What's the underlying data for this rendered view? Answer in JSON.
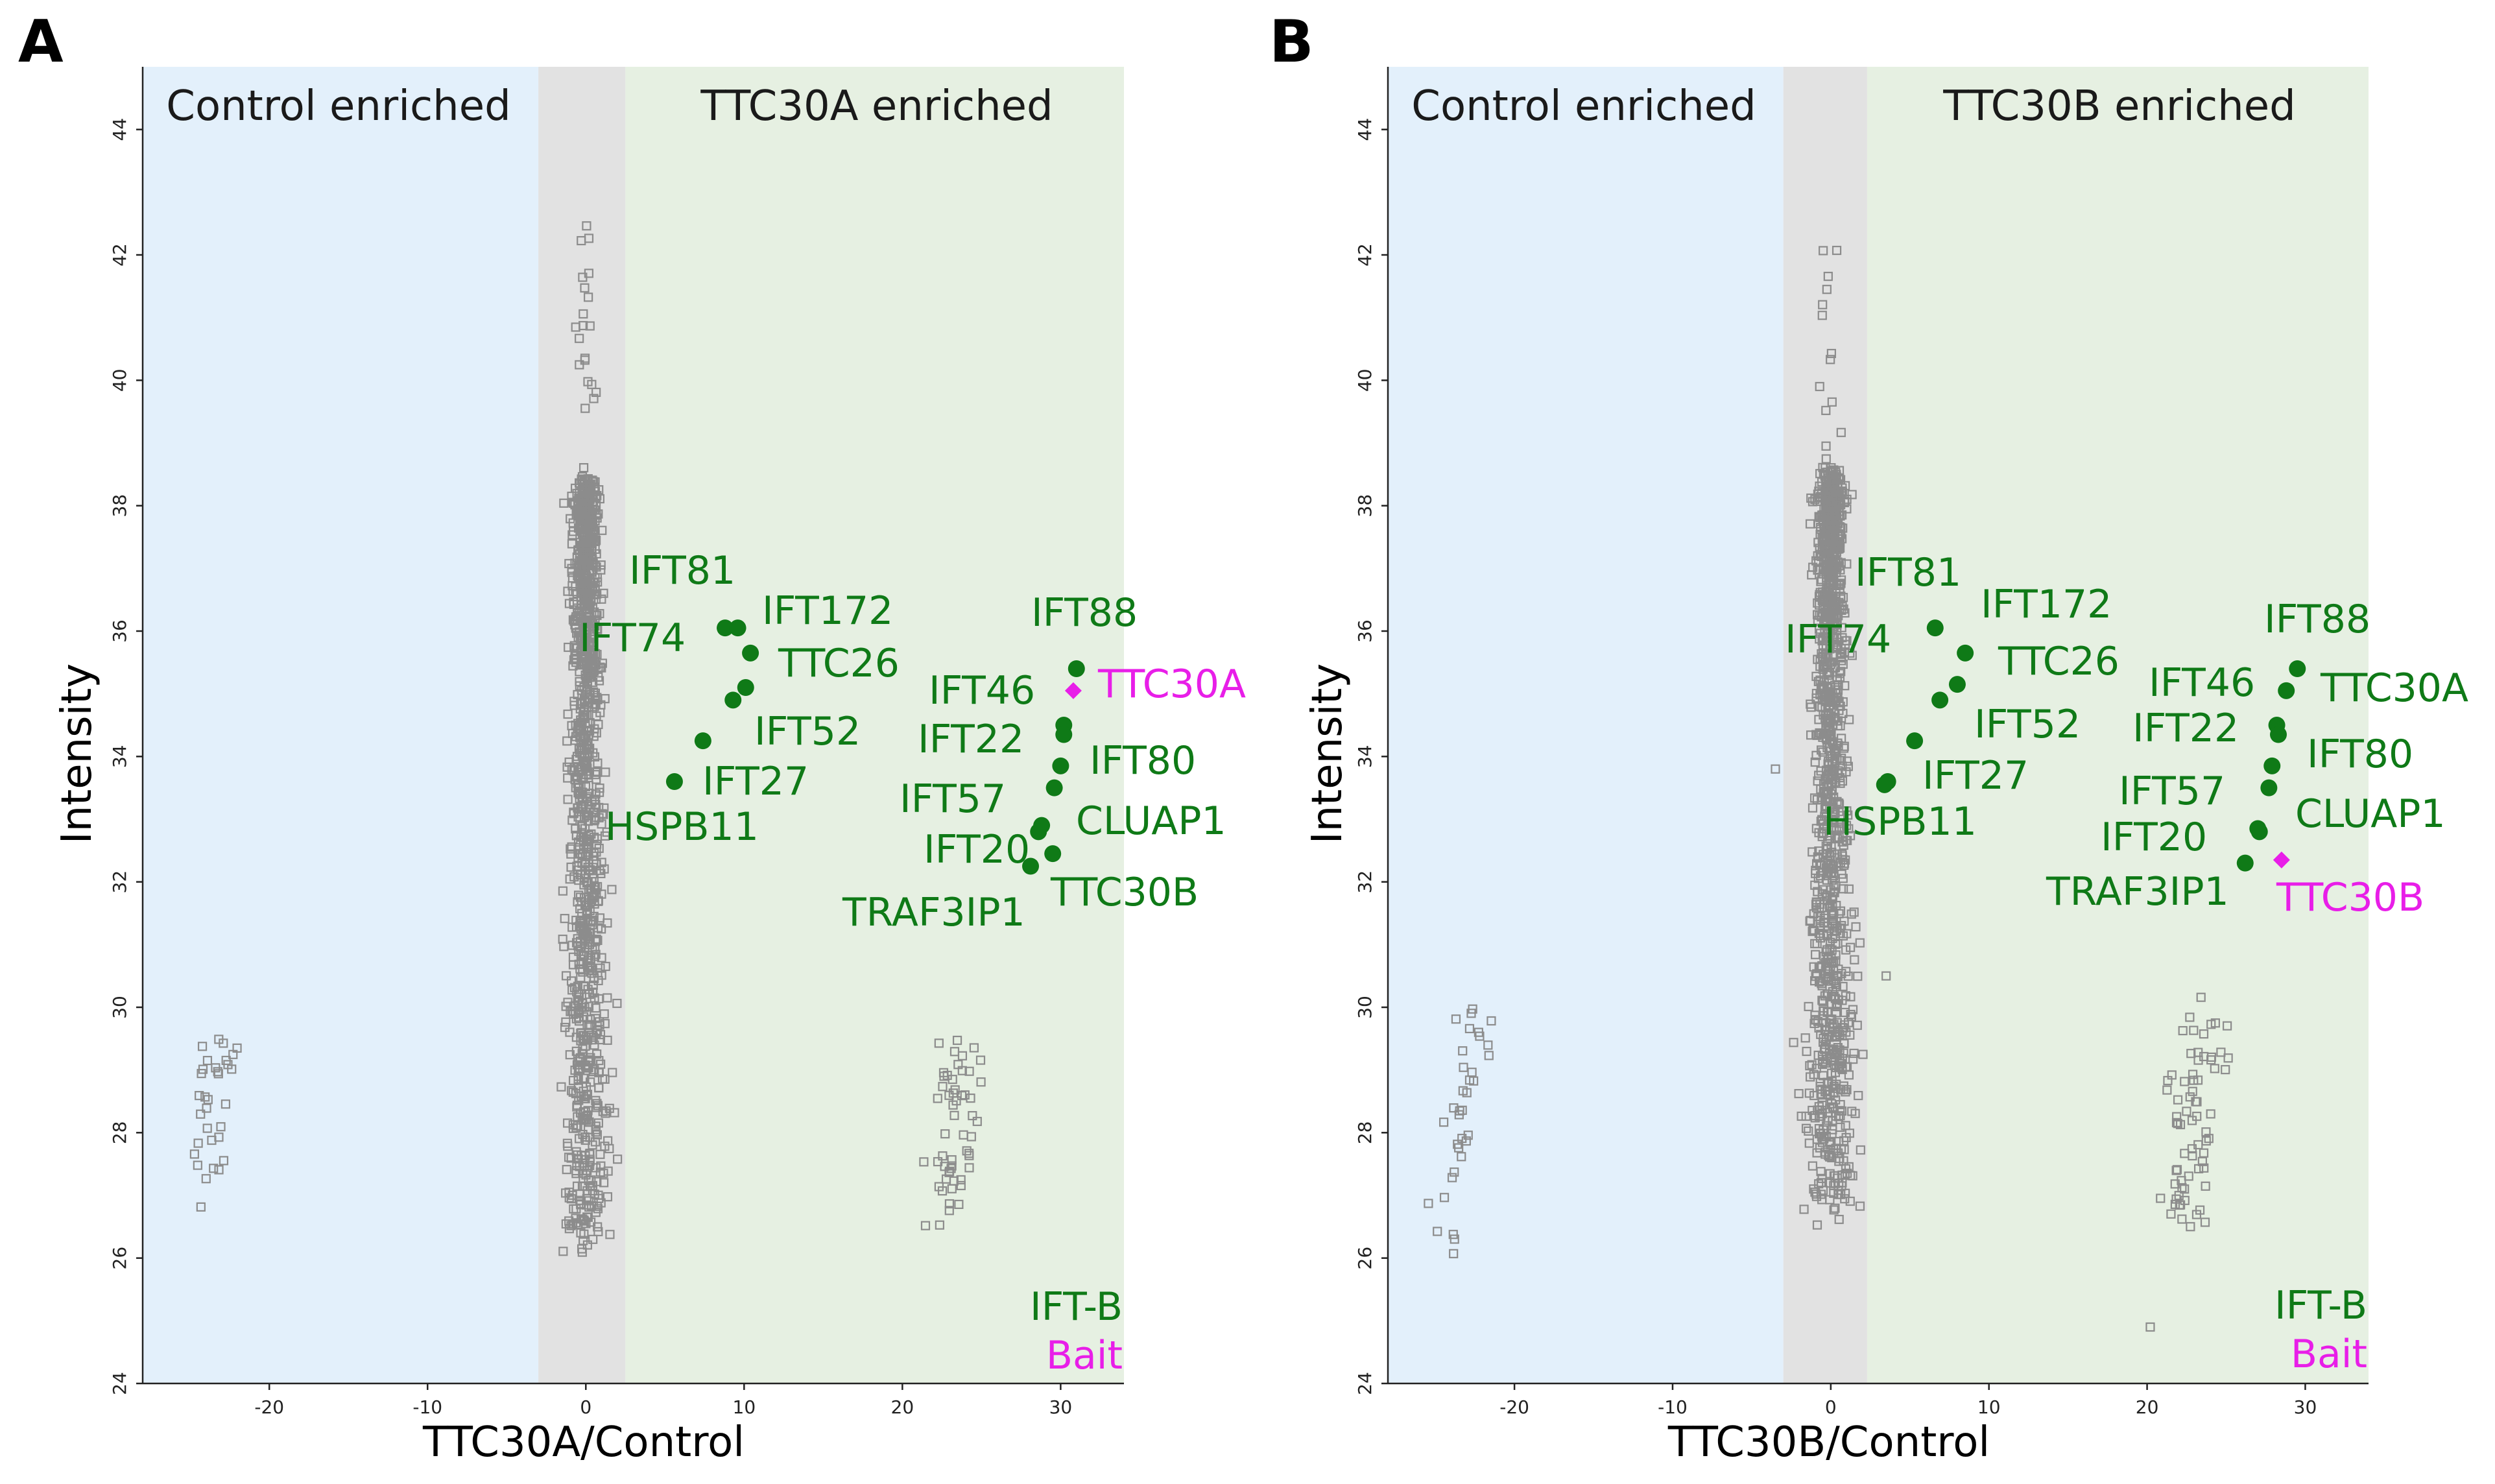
{
  "colors": {
    "control_region": "#e3f0fb",
    "neutral_region": "#e2e2e2",
    "enriched_region": "#e6f0e2",
    "ift_b": "#0f7a17",
    "bait": "#e81ee8",
    "background_points": "#8c8c8c"
  },
  "chart_data": [
    {
      "type": "scatter",
      "panel": "A",
      "xlabel": "TTC30A/Control",
      "ylabel": "Intensity",
      "xlim": [
        -28,
        34
      ],
      "ylim": [
        24,
        45
      ],
      "xticks": [
        -20,
        -10,
        0,
        10,
        20,
        30
      ],
      "yticks": [
        24,
        26,
        28,
        30,
        32,
        34,
        36,
        38,
        40,
        42,
        44
      ],
      "regions": [
        {
          "label": "Control enriched",
          "from": -28,
          "to": -3,
          "kind": "control"
        },
        {
          "label": "",
          "from": -3,
          "to": 2.5,
          "kind": "neutral"
        },
        {
          "label": "TTC30A enriched",
          "from": 2.5,
          "to": 34,
          "kind": "enriched"
        }
      ],
      "legend": [
        {
          "label": "IFT-B",
          "kind": "ift_b"
        },
        {
          "label": "Bait",
          "kind": "bait"
        }
      ],
      "background_clusters": [
        {
          "n": 32,
          "x_center": -23.5,
          "x_spread": 1.2,
          "y_min": 26.8,
          "y_max": 29.5
        },
        {
          "n": 55,
          "x_center": 23.3,
          "x_spread": 1.2,
          "y_min": 26.5,
          "y_max": 29.5
        },
        {
          "n": 1200,
          "x_center": 0,
          "x_spread": 1.0,
          "y_min": 26.0,
          "y_max": 42.5
        }
      ],
      "proteins": [
        {
          "name": "IFT81",
          "x": 8.8,
          "y": 36.05,
          "group": "ift_b"
        },
        {
          "name": "IFT172",
          "x": 9.6,
          "y": 36.05,
          "group": "ift_b"
        },
        {
          "name": "IFT74",
          "x": 10.4,
          "y": 35.65,
          "group": "ift_b"
        },
        {
          "name": "TTC26",
          "x": 10.1,
          "y": 35.1,
          "group": "ift_b"
        },
        {
          "name": "IFT52",
          "x": 9.3,
          "y": 34.9,
          "group": "ift_b"
        },
        {
          "name": "IFT27",
          "x": 7.4,
          "y": 34.25,
          "group": "ift_b"
        },
        {
          "name": "HSPB11",
          "x": 5.6,
          "y": 33.6,
          "group": "ift_b"
        },
        {
          "name": "IFT88",
          "x": 31.0,
          "y": 35.4,
          "group": "ift_b"
        },
        {
          "name": "TTC30A",
          "x": 30.8,
          "y": 35.05,
          "group": "bait"
        },
        {
          "name": "IFT46",
          "x": 30.2,
          "y": 34.5,
          "group": "ift_b"
        },
        {
          "name": "IFT22",
          "x": 30.2,
          "y": 34.35,
          "group": "ift_b"
        },
        {
          "name": "IFT80",
          "x": 30.0,
          "y": 33.85,
          "group": "ift_b"
        },
        {
          "name": "IFT57",
          "x": 29.6,
          "y": 33.5,
          "group": "ift_b"
        },
        {
          "name": "IFT20",
          "x": 28.8,
          "y": 32.9,
          "group": "ift_b"
        },
        {
          "name": "CLUAP1",
          "x": 28.6,
          "y": 32.8,
          "group": "ift_b"
        },
        {
          "name": "TTC30B",
          "x": 29.5,
          "y": 32.45,
          "group": "ift_b"
        },
        {
          "name": "TRAF3IP1",
          "x": 28.1,
          "y": 32.25,
          "group": "ift_b"
        }
      ]
    },
    {
      "type": "scatter",
      "panel": "B",
      "xlabel": "TTC30B/Control",
      "ylabel": "Intensity",
      "xlim": [
        -28,
        34
      ],
      "ylim": [
        24,
        45
      ],
      "xticks": [
        -20,
        -10,
        0,
        10,
        20,
        30
      ],
      "yticks": [
        24,
        26,
        28,
        30,
        32,
        34,
        36,
        38,
        40,
        42,
        44
      ],
      "regions": [
        {
          "label": "Control enriched",
          "from": -28,
          "to": -3,
          "kind": "control"
        },
        {
          "label": "",
          "from": -3,
          "to": 2.3,
          "kind": "neutral"
        },
        {
          "label": "TTC30B enriched",
          "from": 2.3,
          "to": 34,
          "kind": "enriched"
        }
      ],
      "legend": [
        {
          "label": "IFT-B",
          "kind": "ift_b"
        },
        {
          "label": "Bait",
          "kind": "bait"
        }
      ],
      "background_clusters": [
        {
          "n": 35,
          "x_center": -23.5,
          "x_spread": 1.2,
          "y_min": 26.0,
          "y_max": 30.1
        },
        {
          "n": 70,
          "x_center": 23.0,
          "x_spread": 1.3,
          "y_min": 26.5,
          "y_max": 30.2
        },
        {
          "n": 1200,
          "x_center": 0,
          "x_spread": 1.1,
          "y_min": 26.5,
          "y_max": 42.5
        }
      ],
      "extra_background_points": [
        {
          "x": 20.2,
          "y": 24.9
        },
        {
          "x": -3.5,
          "y": 33.8
        },
        {
          "x": 3.5,
          "y": 30.5
        }
      ],
      "proteins": [
        {
          "name": "IFT81",
          "x": 6.6,
          "y": 36.05,
          "group": "ift_b"
        },
        {
          "name": "IFT172",
          "x": 8.5,
          "y": 35.65,
          "group": "ift_b"
        },
        {
          "name": "IFT74",
          "x": 8.0,
          "y": 35.15,
          "group": "ift_b"
        },
        {
          "name": "TTC26",
          "x": 6.9,
          "y": 34.9,
          "group": "ift_b"
        },
        {
          "name": "IFT52",
          "x": 5.3,
          "y": 34.25,
          "group": "ift_b"
        },
        {
          "name": "IFT27",
          "x": 3.6,
          "y": 33.6,
          "group": "ift_b"
        },
        {
          "name": "HSPB11",
          "x": 3.4,
          "y": 33.55,
          "group": "ift_b"
        },
        {
          "name": "IFT88",
          "x": 29.5,
          "y": 35.4,
          "group": "ift_b"
        },
        {
          "name": "TTC30A",
          "x": 28.8,
          "y": 35.05,
          "group": "ift_b"
        },
        {
          "name": "IFT46",
          "x": 28.2,
          "y": 34.5,
          "group": "ift_b"
        },
        {
          "name": "IFT22",
          "x": 28.3,
          "y": 34.35,
          "group": "ift_b"
        },
        {
          "name": "IFT80",
          "x": 27.9,
          "y": 33.85,
          "group": "ift_b"
        },
        {
          "name": "IFT57",
          "x": 27.7,
          "y": 33.5,
          "group": "ift_b"
        },
        {
          "name": "IFT20",
          "x": 27.1,
          "y": 32.8,
          "group": "ift_b"
        },
        {
          "name": "CLUAP1",
          "x": 27.0,
          "y": 32.85,
          "group": "ift_b"
        },
        {
          "name": "TRAF3IP1",
          "x": 26.2,
          "y": 32.3,
          "group": "ift_b"
        },
        {
          "name": "TTC30B",
          "x": 28.5,
          "y": 32.35,
          "group": "bait"
        }
      ]
    }
  ]
}
